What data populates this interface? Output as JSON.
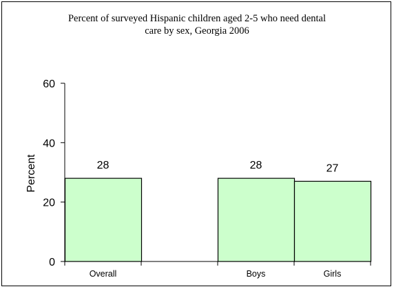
{
  "chart_data": {
    "type": "bar",
    "title_lines": [
      "Percent of surveyed Hispanic children aged 2-5 who need dental",
      "care by sex, Georgia 2006"
    ],
    "categories": [
      "Overall",
      "",
      "Boys",
      "Girls"
    ],
    "values": [
      28,
      null,
      28,
      27
    ],
    "data_labels": [
      "28",
      "",
      "28",
      "27"
    ],
    "ylabel": "Percent",
    "xlabel": "",
    "ylim": [
      0,
      60
    ],
    "yticks": [
      0,
      20,
      40,
      60
    ],
    "grid": false,
    "legend": "none",
    "bar_color": "#ccffcc",
    "bar_stroke": "#000000"
  }
}
